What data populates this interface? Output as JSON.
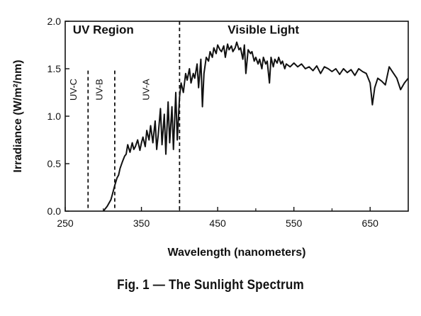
{
  "caption": "Fig. 1 — The Sunlight Spectrum",
  "chart_data": {
    "type": "line",
    "title": "",
    "xlabel": "Wavelength (nanometers)",
    "ylabel": "Irradiance (W/m²/nm)",
    "xlim": [
      250,
      700
    ],
    "ylim": [
      0.0,
      2.0
    ],
    "xticks": [
      250,
      350,
      450,
      550,
      650
    ],
    "xtick_labels": [
      "250",
      "350",
      "450",
      "550",
      "650"
    ],
    "yticks": [
      0.0,
      0.5,
      1.0,
      1.5,
      2.0
    ],
    "ytick_labels": [
      "0.0",
      "0.5",
      "1.0",
      "1.5",
      "2.0"
    ],
    "grid": false,
    "line_color": "#111111",
    "region_labels": [
      {
        "text": "UV Region",
        "x": 300,
        "y": 1.87
      },
      {
        "text": "Visible Light",
        "x": 510,
        "y": 1.87
      }
    ],
    "band_labels": [
      {
        "text": "UV-C",
        "x": 265,
        "y": 1.28
      },
      {
        "text": "UV-B",
        "x": 299,
        "y": 1.28
      },
      {
        "text": "UV-A",
        "x": 360,
        "y": 1.28
      }
    ],
    "boundaries": [
      {
        "x": 280,
        "ymax": 1.48
      },
      {
        "x": 315,
        "ymax": 1.48
      },
      {
        "x": 400,
        "ymax": 2.0
      }
    ],
    "series": [
      {
        "x": [
          300,
          305,
          310,
          312,
          315,
          318,
          320,
          322,
          325,
          328,
          330,
          332,
          335,
          338,
          340,
          342,
          345,
          348,
          350,
          352,
          355,
          357,
          360,
          362,
          365,
          368,
          370,
          372,
          375,
          377,
          380,
          382,
          385,
          387,
          390,
          392,
          395,
          397,
          400,
          402,
          405,
          408,
          410,
          413,
          415,
          418,
          420,
          423,
          425,
          428,
          430,
          432,
          435,
          438,
          440,
          443,
          445,
          448,
          450,
          453,
          455,
          458,
          460,
          463,
          465,
          468,
          470,
          473,
          475,
          478,
          480,
          483,
          485,
          487,
          490,
          493,
          495,
          498,
          500,
          503,
          505,
          508,
          510,
          513,
          515,
          518,
          520,
          523,
          525,
          528,
          530,
          533,
          535,
          538,
          540,
          545,
          550,
          555,
          560,
          565,
          570,
          575,
          580,
          585,
          590,
          595,
          600,
          605,
          610,
          615,
          620,
          625,
          630,
          635,
          640,
          645,
          650,
          653,
          656,
          660,
          665,
          670,
          675,
          680,
          685,
          690,
          695,
          700
        ],
        "y": [
          0.0,
          0.05,
          0.12,
          0.18,
          0.27,
          0.35,
          0.38,
          0.45,
          0.52,
          0.58,
          0.6,
          0.7,
          0.62,
          0.72,
          0.65,
          0.68,
          0.75,
          0.64,
          0.72,
          0.78,
          0.68,
          0.85,
          0.75,
          0.9,
          0.72,
          0.95,
          0.65,
          0.8,
          1.08,
          0.7,
          1.02,
          0.6,
          1.15,
          0.72,
          1.1,
          0.65,
          1.25,
          0.75,
          1.2,
          1.35,
          1.25,
          1.45,
          1.38,
          1.5,
          1.35,
          1.45,
          1.4,
          1.55,
          1.3,
          1.6,
          1.1,
          1.45,
          1.62,
          1.58,
          1.68,
          1.62,
          1.72,
          1.66,
          1.75,
          1.7,
          1.68,
          1.74,
          1.62,
          1.76,
          1.7,
          1.74,
          1.68,
          1.72,
          1.78,
          1.7,
          1.72,
          1.6,
          1.75,
          1.45,
          1.7,
          1.66,
          1.68,
          1.58,
          1.62,
          1.55,
          1.6,
          1.5,
          1.62,
          1.55,
          1.58,
          1.35,
          1.62,
          1.52,
          1.6,
          1.56,
          1.62,
          1.55,
          1.58,
          1.5,
          1.55,
          1.52,
          1.56,
          1.52,
          1.55,
          1.5,
          1.52,
          1.48,
          1.53,
          1.45,
          1.52,
          1.5,
          1.47,
          1.5,
          1.44,
          1.5,
          1.46,
          1.49,
          1.43,
          1.5,
          1.47,
          1.45,
          1.35,
          1.12,
          1.3,
          1.4,
          1.37,
          1.33,
          1.52,
          1.46,
          1.4,
          1.28,
          1.35,
          1.4
        ]
      }
    ]
  }
}
